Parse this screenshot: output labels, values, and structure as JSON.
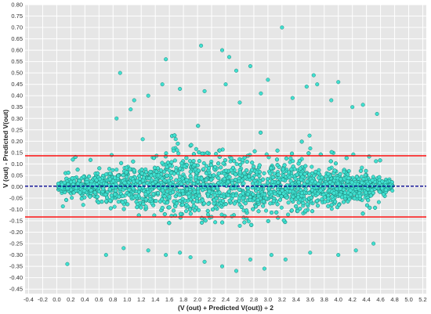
{
  "chart_data": {
    "type": "scatter",
    "xlabel": "(V (out) + Predicted V(out)) ÷ 2",
    "ylabel": "V (out) - Predicted V(out)",
    "xlim": [
      -0.45,
      5.25
    ],
    "ylim": [
      -0.47,
      0.8
    ],
    "x_ticks": [
      "-0.4",
      "-0.2",
      "0.0",
      "0.2",
      "0.4",
      "0.6",
      "0.8",
      "1.0",
      "1.2",
      "1.4",
      "1.6",
      "1.8",
      "2.0",
      "2.2",
      "2.4",
      "2.6",
      "2.8",
      "3.0",
      "3.2",
      "3.4",
      "3.6",
      "3.8",
      "4.0",
      "4.2",
      "4.4",
      "4.6",
      "4.8",
      "5.0",
      "5.2"
    ],
    "y_ticks": [
      "0.80",
      "0.75",
      "0.70",
      "0.65",
      "0.60",
      "0.55",
      "0.50",
      "0.45",
      "0.40",
      "0.35",
      "0.30",
      "0.25",
      "0.20",
      "0.15",
      "0.10",
      "0.05",
      "0.00",
      "-0.05",
      "-0.10",
      "-0.15",
      "-0.20",
      "-0.25",
      "-0.30",
      "-0.35",
      "-0.40",
      "-0.45"
    ],
    "grid": true,
    "background": "#e6e6e6",
    "marker_fill": "#40e0d0",
    "marker_edge": "#1a7a70",
    "reference_lines": [
      {
        "kind": "upper limit of agreement",
        "y": 0.136,
        "color": "#ff0000",
        "style": "solid"
      },
      {
        "kind": "mean difference",
        "y": 0.002,
        "color": "#00008b",
        "style": "dashed"
      },
      {
        "kind": "lower limit of agreement",
        "y": -0.133,
        "color": "#ff0000",
        "style": "solid"
      }
    ],
    "points": [
      [
        3.2,
        0.7
      ],
      [
        2.05,
        0.62
      ],
      [
        2.35,
        0.6
      ],
      [
        2.45,
        0.57
      ],
      [
        1.55,
        0.56
      ],
      [
        2.75,
        0.53
      ],
      [
        2.55,
        0.51
      ],
      [
        0.9,
        0.5
      ],
      [
        3.65,
        0.49
      ],
      [
        2.4,
        0.45
      ],
      [
        3.0,
        0.47
      ],
      [
        4.0,
        0.46
      ],
      [
        1.5,
        0.45
      ],
      [
        3.7,
        0.45
      ],
      [
        1.3,
        0.4
      ],
      [
        2.1,
        0.42
      ],
      [
        3.55,
        0.44
      ],
      [
        1.75,
        0.43
      ],
      [
        2.9,
        0.41
      ],
      [
        1.1,
        0.38
      ],
      [
        3.35,
        0.39
      ],
      [
        3.9,
        0.38
      ],
      [
        4.2,
        0.35
      ],
      [
        2.6,
        0.37
      ],
      [
        0.85,
        0.3
      ],
      [
        4.55,
        0.32
      ],
      [
        4.35,
        0.36
      ],
      [
        1.05,
        0.34
      ],
      [
        0.15,
        -0.34
      ],
      [
        0.7,
        -0.3
      ],
      [
        2.55,
        -0.37
      ],
      [
        2.35,
        -0.35
      ],
      [
        3.25,
        -0.32
      ],
      [
        2.75,
        -0.32
      ],
      [
        4.0,
        -0.3
      ],
      [
        1.9,
        -0.31
      ],
      [
        3.6,
        -0.29
      ],
      [
        1.55,
        -0.3
      ],
      [
        4.25,
        -0.28
      ],
      [
        2.1,
        -0.33
      ],
      [
        1.3,
        -0.28
      ],
      [
        3.05,
        -0.3
      ],
      [
        0.95,
        -0.27
      ],
      [
        4.5,
        -0.25
      ],
      [
        2.95,
        -0.36
      ],
      [
        1.75,
        -0.29
      ]
    ]
  }
}
